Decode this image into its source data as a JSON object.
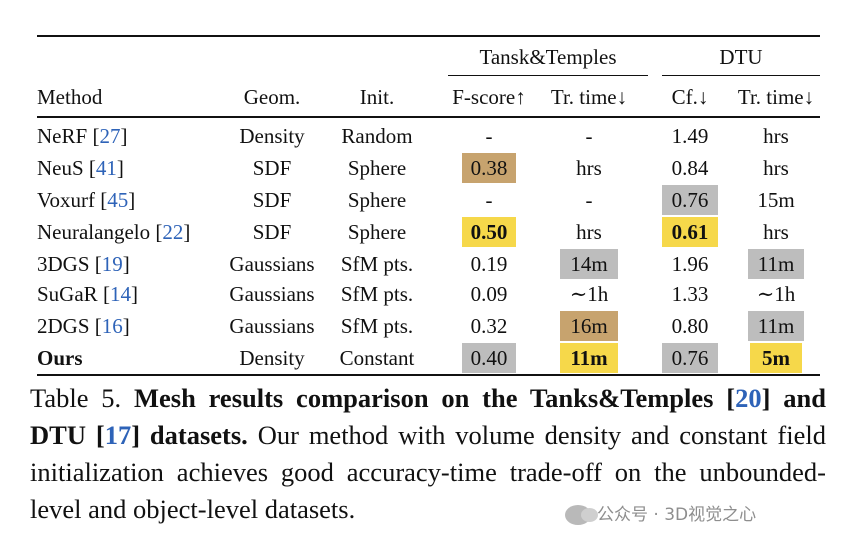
{
  "table": {
    "group_headers": {
      "tt": "Tansk&Temples",
      "dtu": "DTU"
    },
    "column_headers": {
      "method": "Method",
      "geom": "Geom.",
      "init": "Init.",
      "fscore": "F-score↑",
      "tt_time": "Tr. time↓",
      "cf": "Cf.↓",
      "dtu_time": "Tr. time↓"
    },
    "rows": [
      {
        "method": "NeRF",
        "cite": "27",
        "geom": "Density",
        "init": "Random",
        "fscore": "-",
        "tt_time": "-",
        "cf": "1.49",
        "dtu_time": "hrs"
      },
      {
        "method": "NeuS",
        "cite": "41",
        "geom": "SDF",
        "init": "Sphere",
        "fscore": "0.38",
        "tt_time": "hrs",
        "cf": "0.84",
        "dtu_time": "hrs"
      },
      {
        "method": "Voxurf",
        "cite": "45",
        "geom": "SDF",
        "init": "Sphere",
        "fscore": "-",
        "tt_time": "-",
        "cf": "0.76",
        "dtu_time": "15m"
      },
      {
        "method": "Neuralangelo",
        "cite": "22",
        "geom": "SDF",
        "init": "Sphere",
        "fscore": "0.50",
        "tt_time": "hrs",
        "cf": "0.61",
        "dtu_time": "hrs"
      },
      {
        "method": "3DGS",
        "cite": "19",
        "geom": "Gaussians",
        "init": "SfM pts.",
        "fscore": "0.19",
        "tt_time": "14m",
        "cf": "1.96",
        "dtu_time": "11m"
      },
      {
        "method": "SuGaR",
        "cite": "14",
        "geom": "Gaussians",
        "init": "SfM pts.",
        "fscore": "0.09",
        "tt_time": "∼1h",
        "cf": "1.33",
        "dtu_time": "∼1h"
      },
      {
        "method": "2DGS",
        "cite": "16",
        "geom": "Gaussians",
        "init": "SfM pts.",
        "fscore": "0.32",
        "tt_time": "16m",
        "cf": "0.80",
        "dtu_time": "11m"
      },
      {
        "method": "Ours",
        "geom": "Density",
        "init": "Constant",
        "fscore": "0.40",
        "tt_time": "11m",
        "cf": "0.76",
        "dtu_time": "5m"
      }
    ],
    "highlight_colors": {
      "first": "#f6d84a",
      "second": "#bdbdbd",
      "third": "#c7a36e"
    }
  },
  "caption": {
    "label": "Table 5.",
    "bold_pre": "Mesh results comparison on the Tanks&Temples [",
    "ref1": "20",
    "bold_mid": "] and DTU [",
    "ref2": "17",
    "bold_post": "] datasets.",
    "body": " Our method with volume density and constant field initialization achieves good accuracy-time trade-off on the unbounded-level and object-level datasets."
  },
  "watermark": {
    "text": "公众号 · 3D视觉之心"
  }
}
